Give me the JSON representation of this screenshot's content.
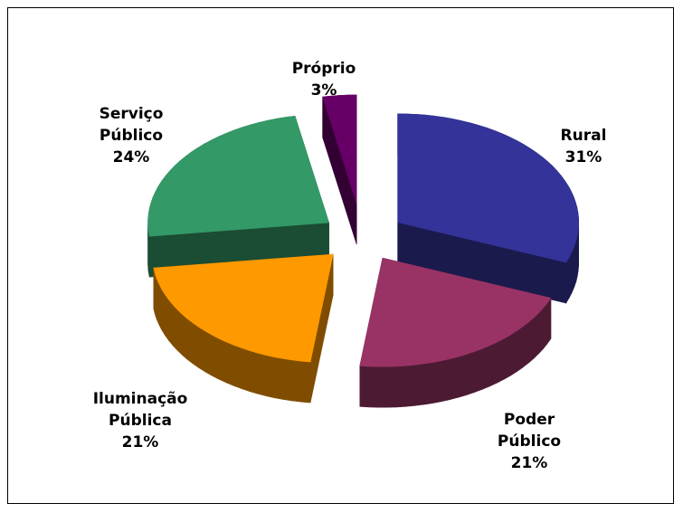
{
  "chart_data": {
    "type": "pie3d",
    "categories": [
      "Rural",
      "Poder Público",
      "Iluminação Pública",
      "Serviço Público",
      "Próprio"
    ],
    "values": [
      31,
      21,
      21,
      24,
      3
    ],
    "value_labels": [
      "31%",
      "21%",
      "21%",
      "24%",
      "3%"
    ],
    "colors": [
      "#333399",
      "#993366",
      "#ff9900",
      "#339966",
      "#660066"
    ]
  }
}
